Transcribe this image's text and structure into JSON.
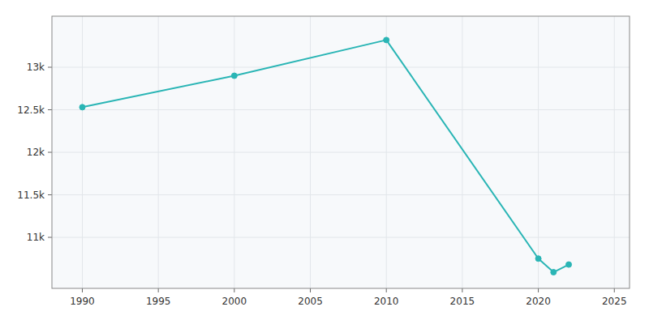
{
  "chart_data": {
    "type": "line",
    "x": [
      1990,
      2000,
      2010,
      2020,
      2021,
      2022
    ],
    "values": [
      12530,
      12900,
      13320,
      10750,
      10590,
      10680
    ],
    "color": "#2ab5b5",
    "marker": "circle",
    "xlim": [
      1988,
      2026
    ],
    "ylim": [
      10400,
      13600
    ],
    "xticks": [
      1990,
      1995,
      2000,
      2005,
      2010,
      2015,
      2020,
      2025
    ],
    "yticks": [
      {
        "value": 11000,
        "label": "11k"
      },
      {
        "value": 11500,
        "label": "11.5k"
      },
      {
        "value": 12000,
        "label": "12k"
      },
      {
        "value": 12500,
        "label": "12.5k"
      },
      {
        "value": 13000,
        "label": "13k"
      }
    ],
    "grid": true
  }
}
